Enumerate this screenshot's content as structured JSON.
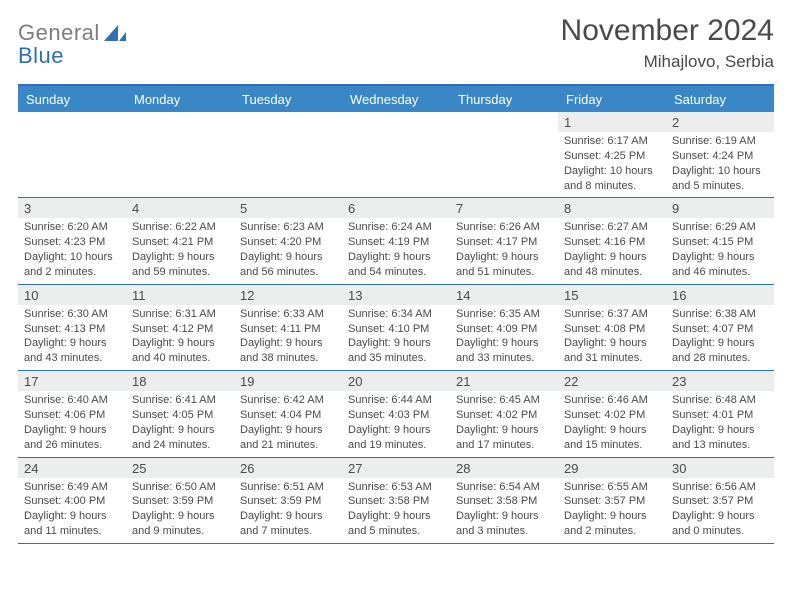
{
  "logo": {
    "word1": "General",
    "word2": "Blue",
    "color1": "#7d7d7d",
    "color2": "#2f6fb3"
  },
  "title": "November 2024",
  "subtitle": "Mihajlovo, Serbia",
  "dayNames": [
    "Sunday",
    "Monday",
    "Tuesday",
    "Wednesday",
    "Thursday",
    "Friday",
    "Saturday"
  ],
  "colors": {
    "headerBar": "#3a87c7",
    "borderAccent": "#2f6fb3",
    "dayNumBg": "#eceded",
    "text": "#4a4a4a",
    "white": "#ffffff"
  },
  "weeks": [
    [
      {
        "n": "",
        "sunrise": "",
        "sunset": "",
        "daylight": ""
      },
      {
        "n": "",
        "sunrise": "",
        "sunset": "",
        "daylight": ""
      },
      {
        "n": "",
        "sunrise": "",
        "sunset": "",
        "daylight": ""
      },
      {
        "n": "",
        "sunrise": "",
        "sunset": "",
        "daylight": ""
      },
      {
        "n": "",
        "sunrise": "",
        "sunset": "",
        "daylight": ""
      },
      {
        "n": "1",
        "sunrise": "Sunrise: 6:17 AM",
        "sunset": "Sunset: 4:25 PM",
        "daylight": "Daylight: 10 hours and 8 minutes."
      },
      {
        "n": "2",
        "sunrise": "Sunrise: 6:19 AM",
        "sunset": "Sunset: 4:24 PM",
        "daylight": "Daylight: 10 hours and 5 minutes."
      }
    ],
    [
      {
        "n": "3",
        "sunrise": "Sunrise: 6:20 AM",
        "sunset": "Sunset: 4:23 PM",
        "daylight": "Daylight: 10 hours and 2 minutes."
      },
      {
        "n": "4",
        "sunrise": "Sunrise: 6:22 AM",
        "sunset": "Sunset: 4:21 PM",
        "daylight": "Daylight: 9 hours and 59 minutes."
      },
      {
        "n": "5",
        "sunrise": "Sunrise: 6:23 AM",
        "sunset": "Sunset: 4:20 PM",
        "daylight": "Daylight: 9 hours and 56 minutes."
      },
      {
        "n": "6",
        "sunrise": "Sunrise: 6:24 AM",
        "sunset": "Sunset: 4:19 PM",
        "daylight": "Daylight: 9 hours and 54 minutes."
      },
      {
        "n": "7",
        "sunrise": "Sunrise: 6:26 AM",
        "sunset": "Sunset: 4:17 PM",
        "daylight": "Daylight: 9 hours and 51 minutes."
      },
      {
        "n": "8",
        "sunrise": "Sunrise: 6:27 AM",
        "sunset": "Sunset: 4:16 PM",
        "daylight": "Daylight: 9 hours and 48 minutes."
      },
      {
        "n": "9",
        "sunrise": "Sunrise: 6:29 AM",
        "sunset": "Sunset: 4:15 PM",
        "daylight": "Daylight: 9 hours and 46 minutes."
      }
    ],
    [
      {
        "n": "10",
        "sunrise": "Sunrise: 6:30 AM",
        "sunset": "Sunset: 4:13 PM",
        "daylight": "Daylight: 9 hours and 43 minutes."
      },
      {
        "n": "11",
        "sunrise": "Sunrise: 6:31 AM",
        "sunset": "Sunset: 4:12 PM",
        "daylight": "Daylight: 9 hours and 40 minutes."
      },
      {
        "n": "12",
        "sunrise": "Sunrise: 6:33 AM",
        "sunset": "Sunset: 4:11 PM",
        "daylight": "Daylight: 9 hours and 38 minutes."
      },
      {
        "n": "13",
        "sunrise": "Sunrise: 6:34 AM",
        "sunset": "Sunset: 4:10 PM",
        "daylight": "Daylight: 9 hours and 35 minutes."
      },
      {
        "n": "14",
        "sunrise": "Sunrise: 6:35 AM",
        "sunset": "Sunset: 4:09 PM",
        "daylight": "Daylight: 9 hours and 33 minutes."
      },
      {
        "n": "15",
        "sunrise": "Sunrise: 6:37 AM",
        "sunset": "Sunset: 4:08 PM",
        "daylight": "Daylight: 9 hours and 31 minutes."
      },
      {
        "n": "16",
        "sunrise": "Sunrise: 6:38 AM",
        "sunset": "Sunset: 4:07 PM",
        "daylight": "Daylight: 9 hours and 28 minutes."
      }
    ],
    [
      {
        "n": "17",
        "sunrise": "Sunrise: 6:40 AM",
        "sunset": "Sunset: 4:06 PM",
        "daylight": "Daylight: 9 hours and 26 minutes."
      },
      {
        "n": "18",
        "sunrise": "Sunrise: 6:41 AM",
        "sunset": "Sunset: 4:05 PM",
        "daylight": "Daylight: 9 hours and 24 minutes."
      },
      {
        "n": "19",
        "sunrise": "Sunrise: 6:42 AM",
        "sunset": "Sunset: 4:04 PM",
        "daylight": "Daylight: 9 hours and 21 minutes."
      },
      {
        "n": "20",
        "sunrise": "Sunrise: 6:44 AM",
        "sunset": "Sunset: 4:03 PM",
        "daylight": "Daylight: 9 hours and 19 minutes."
      },
      {
        "n": "21",
        "sunrise": "Sunrise: 6:45 AM",
        "sunset": "Sunset: 4:02 PM",
        "daylight": "Daylight: 9 hours and 17 minutes."
      },
      {
        "n": "22",
        "sunrise": "Sunrise: 6:46 AM",
        "sunset": "Sunset: 4:02 PM",
        "daylight": "Daylight: 9 hours and 15 minutes."
      },
      {
        "n": "23",
        "sunrise": "Sunrise: 6:48 AM",
        "sunset": "Sunset: 4:01 PM",
        "daylight": "Daylight: 9 hours and 13 minutes."
      }
    ],
    [
      {
        "n": "24",
        "sunrise": "Sunrise: 6:49 AM",
        "sunset": "Sunset: 4:00 PM",
        "daylight": "Daylight: 9 hours and 11 minutes."
      },
      {
        "n": "25",
        "sunrise": "Sunrise: 6:50 AM",
        "sunset": "Sunset: 3:59 PM",
        "daylight": "Daylight: 9 hours and 9 minutes."
      },
      {
        "n": "26",
        "sunrise": "Sunrise: 6:51 AM",
        "sunset": "Sunset: 3:59 PM",
        "daylight": "Daylight: 9 hours and 7 minutes."
      },
      {
        "n": "27",
        "sunrise": "Sunrise: 6:53 AM",
        "sunset": "Sunset: 3:58 PM",
        "daylight": "Daylight: 9 hours and 5 minutes."
      },
      {
        "n": "28",
        "sunrise": "Sunrise: 6:54 AM",
        "sunset": "Sunset: 3:58 PM",
        "daylight": "Daylight: 9 hours and 3 minutes."
      },
      {
        "n": "29",
        "sunrise": "Sunrise: 6:55 AM",
        "sunset": "Sunset: 3:57 PM",
        "daylight": "Daylight: 9 hours and 2 minutes."
      },
      {
        "n": "30",
        "sunrise": "Sunrise: 6:56 AM",
        "sunset": "Sunset: 3:57 PM",
        "daylight": "Daylight: 9 hours and 0 minutes."
      }
    ]
  ]
}
